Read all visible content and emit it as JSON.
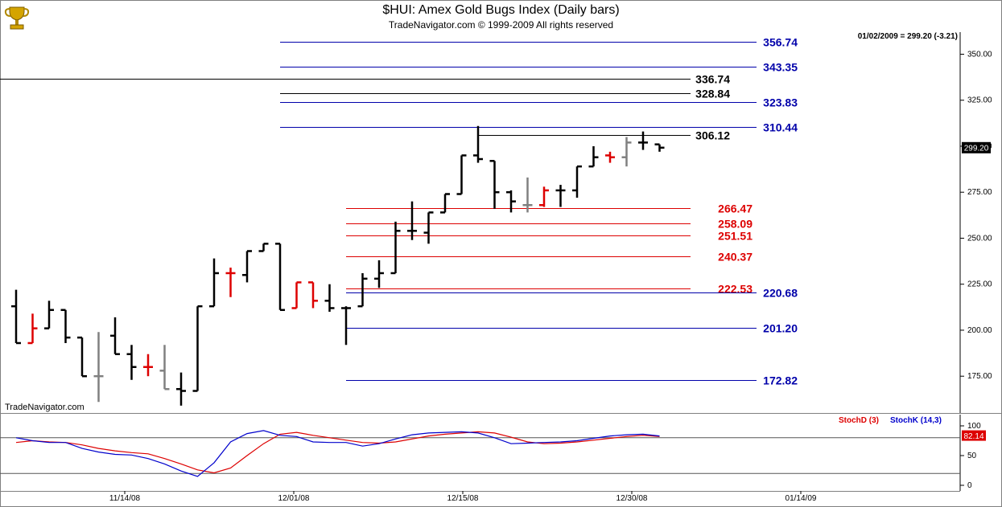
{
  "header": {
    "title": "$HUI:  Amex Gold Bugs Index  (Daily bars)",
    "subtitle": "TradeNavigator.com © 1999-2009 All rights reserved",
    "last_bar_readout": "01/02/2009 = 299.20 (-3.21)",
    "watermark": "TradeNavigator.com",
    "logo_icon": "gold-trophy-icon"
  },
  "colors": {
    "up_bar": "#000000",
    "down_bar": "#dd0000",
    "neutral_bar": "#808080",
    "blue_level": "#0000aa",
    "red_level": "#dd0000",
    "black_level": "#000000",
    "stochD": "#dd0000",
    "stochK": "#0000cc"
  },
  "chart_data": [
    {
      "type": "ohlc",
      "title": "$HUI:  Amex Gold Bugs Index  (Daily bars)",
      "ylim": [
        155,
        362
      ],
      "y_ticks": [
        "350.00",
        "325.00",
        "300.00",
        "275.00",
        "250.00",
        "225.00",
        "200.00",
        "175.00"
      ],
      "x_tick_labels": [
        "11/14/08",
        "12/01/08",
        "12/15/08",
        "12/30/08",
        "01/14/09"
      ],
      "last_price_label": "299.20",
      "bars": [
        {
          "date": "11/03/08",
          "o": 213,
          "h": 222,
          "l": 193,
          "c": 193,
          "color": "black"
        },
        {
          "date": "11/04/08",
          "o": 193,
          "h": 209,
          "l": 193,
          "c": 201,
          "color": "red"
        },
        {
          "date": "11/05/08",
          "o": 201,
          "h": 216,
          "l": 201,
          "c": 211,
          "color": "black"
        },
        {
          "date": "11/06/08",
          "o": 211,
          "h": 211,
          "l": 193,
          "c": 196,
          "color": "black"
        },
        {
          "date": "11/07/08",
          "o": 196,
          "h": 196,
          "l": 175,
          "c": 175,
          "color": "black"
        },
        {
          "date": "11/10/08",
          "o": 175,
          "h": 199,
          "l": 161,
          "c": 175,
          "color": "gray"
        },
        {
          "date": "11/11/08",
          "o": 197,
          "h": 207,
          "l": 187,
          "c": 187,
          "color": "black"
        },
        {
          "date": "11/12/08",
          "o": 187,
          "h": 192,
          "l": 173,
          "c": 180,
          "color": "black"
        },
        {
          "date": "11/13/08",
          "o": 180,
          "h": 187,
          "l": 175,
          "c": 180,
          "color": "red"
        },
        {
          "date": "11/14/08",
          "o": 178,
          "h": 192,
          "l": 168,
          "c": 168,
          "color": "gray"
        },
        {
          "date": "11/17/08",
          "o": 168,
          "h": 177,
          "l": 159,
          "c": 167,
          "color": "black"
        },
        {
          "date": "11/18/08",
          "o": 167,
          "h": 213,
          "l": 167,
          "c": 213,
          "color": "black"
        },
        {
          "date": "11/19/08",
          "o": 213,
          "h": 239,
          "l": 213,
          "c": 231,
          "color": "black"
        },
        {
          "date": "11/20/08",
          "o": 231,
          "h": 234,
          "l": 218,
          "c": 231,
          "color": "red"
        },
        {
          "date": "11/21/08",
          "o": 230,
          "h": 243,
          "l": 226,
          "c": 243,
          "color": "black"
        },
        {
          "date": "11/24/08",
          "o": 243,
          "h": 247,
          "l": 243,
          "c": 247,
          "color": "black"
        },
        {
          "date": "11/25/08",
          "o": 247,
          "h": 247,
          "l": 211,
          "c": 211,
          "color": "black"
        },
        {
          "date": "11/26/08",
          "o": 212,
          "h": 226,
          "l": 212,
          "c": 226,
          "color": "red"
        },
        {
          "date": "11/28/08",
          "o": 226,
          "h": 226,
          "l": 212,
          "c": 216,
          "color": "red"
        },
        {
          "date": "12/01/08",
          "o": 216,
          "h": 225,
          "l": 210,
          "c": 212,
          "color": "black"
        },
        {
          "date": "12/02/08",
          "o": 212,
          "h": 213,
          "l": 192,
          "c": 212,
          "color": "black"
        },
        {
          "date": "12/03/08",
          "o": 213,
          "h": 231,
          "l": 213,
          "c": 228,
          "color": "black"
        },
        {
          "date": "12/04/08",
          "o": 228,
          "h": 238,
          "l": 223,
          "c": 231,
          "color": "black"
        },
        {
          "date": "12/05/08",
          "o": 231,
          "h": 259,
          "l": 231,
          "c": 254,
          "color": "black"
        },
        {
          "date": "12/08/08",
          "o": 254,
          "h": 270,
          "l": 249,
          "c": 254,
          "color": "black"
        },
        {
          "date": "12/09/08",
          "o": 253,
          "h": 264,
          "l": 247,
          "c": 264,
          "color": "black"
        },
        {
          "date": "12/10/08",
          "o": 264,
          "h": 274,
          "l": 264,
          "c": 274,
          "color": "black"
        },
        {
          "date": "12/11/08",
          "o": 274,
          "h": 295,
          "l": 274,
          "c": 295,
          "color": "black"
        },
        {
          "date": "12/12/08",
          "o": 295,
          "h": 311,
          "l": 291,
          "c": 293,
          "color": "black"
        },
        {
          "date": "12/15/08",
          "o": 292,
          "h": 292,
          "l": 266,
          "c": 275,
          "color": "black"
        },
        {
          "date": "12/16/08",
          "o": 275,
          "h": 276,
          "l": 264,
          "c": 270,
          "color": "black"
        },
        {
          "date": "12/17/08",
          "o": 268,
          "h": 283,
          "l": 264,
          "c": 268,
          "color": "gray"
        },
        {
          "date": "12/18/08",
          "o": 268,
          "h": 278,
          "l": 267,
          "c": 276,
          "color": "red"
        },
        {
          "date": "12/19/08",
          "o": 276,
          "h": 279,
          "l": 267,
          "c": 276,
          "color": "black"
        },
        {
          "date": "12/22/08",
          "o": 276,
          "h": 289,
          "l": 272,
          "c": 289,
          "color": "black"
        },
        {
          "date": "12/23/08",
          "o": 289,
          "h": 300,
          "l": 289,
          "c": 294,
          "color": "black"
        },
        {
          "date": "12/24/08",
          "o": 295,
          "h": 297,
          "l": 291,
          "c": 294,
          "color": "red"
        },
        {
          "date": "12/26/08",
          "o": 294,
          "h": 305,
          "l": 289,
          "c": 302,
          "color": "gray"
        },
        {
          "date": "12/29/08",
          "o": 302,
          "h": 308,
          "l": 298,
          "c": 302,
          "color": "black"
        },
        {
          "date": "01/02/09",
          "o": 301,
          "h": 301,
          "l": 297,
          "c": 299.2,
          "color": "black"
        }
      ],
      "levels": [
        {
          "value": 356.74,
          "label": "356.74",
          "color": "blue",
          "from": "11/25/08"
        },
        {
          "value": 343.35,
          "label": "343.35",
          "color": "blue",
          "from": "11/25/08"
        },
        {
          "value": 336.74,
          "label": "336.74",
          "color": "black",
          "from": "start"
        },
        {
          "value": 328.84,
          "label": "328.84",
          "color": "black",
          "from": "11/25/08"
        },
        {
          "value": 323.83,
          "label": "323.83",
          "color": "blue",
          "from": "11/25/08"
        },
        {
          "value": 310.44,
          "label": "310.44",
          "color": "blue",
          "from": "11/25/08"
        },
        {
          "value": 306.12,
          "label": "306.12",
          "color": "black",
          "from": "12/12/08"
        },
        {
          "value": 266.47,
          "label": "266.47",
          "color": "red",
          "from": "12/02/08"
        },
        {
          "value": 258.09,
          "label": "258.09",
          "color": "red",
          "from": "12/02/08"
        },
        {
          "value": 251.51,
          "label": "251.51",
          "color": "red",
          "from": "12/02/08"
        },
        {
          "value": 240.37,
          "label": "240.37",
          "color": "red",
          "from": "12/02/08"
        },
        {
          "value": 222.53,
          "label": "222.53",
          "color": "red",
          "from": "12/02/08"
        },
        {
          "value": 220.68,
          "label": "220.68",
          "color": "blue",
          "from": "12/02/08"
        },
        {
          "value": 201.2,
          "label": "201.20",
          "color": "blue",
          "from": "12/02/08"
        },
        {
          "value": 172.82,
          "label": "172.82",
          "color": "blue",
          "from": "12/02/08"
        }
      ]
    },
    {
      "type": "line",
      "title": "StochD (3)  StochK (14,3)",
      "ylim": [
        0,
        100
      ],
      "y_ticks": [
        "100",
        "50",
        "0"
      ],
      "reference_lines": [
        80,
        20
      ],
      "last_value_label": "82.14",
      "series": [
        {
          "name": "StochD (3)",
          "color": "red",
          "values": [
            72,
            75,
            73,
            72,
            68,
            62,
            58,
            55,
            53,
            45,
            36,
            26,
            21,
            29,
            50,
            70,
            86,
            89,
            84,
            80,
            76,
            72,
            71,
            73,
            78,
            83,
            86,
            88,
            90,
            88,
            81,
            73,
            70,
            71,
            73,
            76,
            79,
            82,
            84,
            82
          ]
        },
        {
          "name": "StochK (14,3)",
          "color": "blue",
          "values": [
            80,
            75,
            72,
            72,
            62,
            56,
            52,
            51,
            45,
            36,
            24,
            15,
            38,
            73,
            87,
            92,
            84,
            82,
            73,
            72,
            72,
            66,
            70,
            78,
            85,
            88,
            89,
            90,
            88,
            80,
            70,
            71,
            72,
            73,
            75,
            79,
            83,
            85,
            86,
            83
          ]
        }
      ]
    }
  ]
}
